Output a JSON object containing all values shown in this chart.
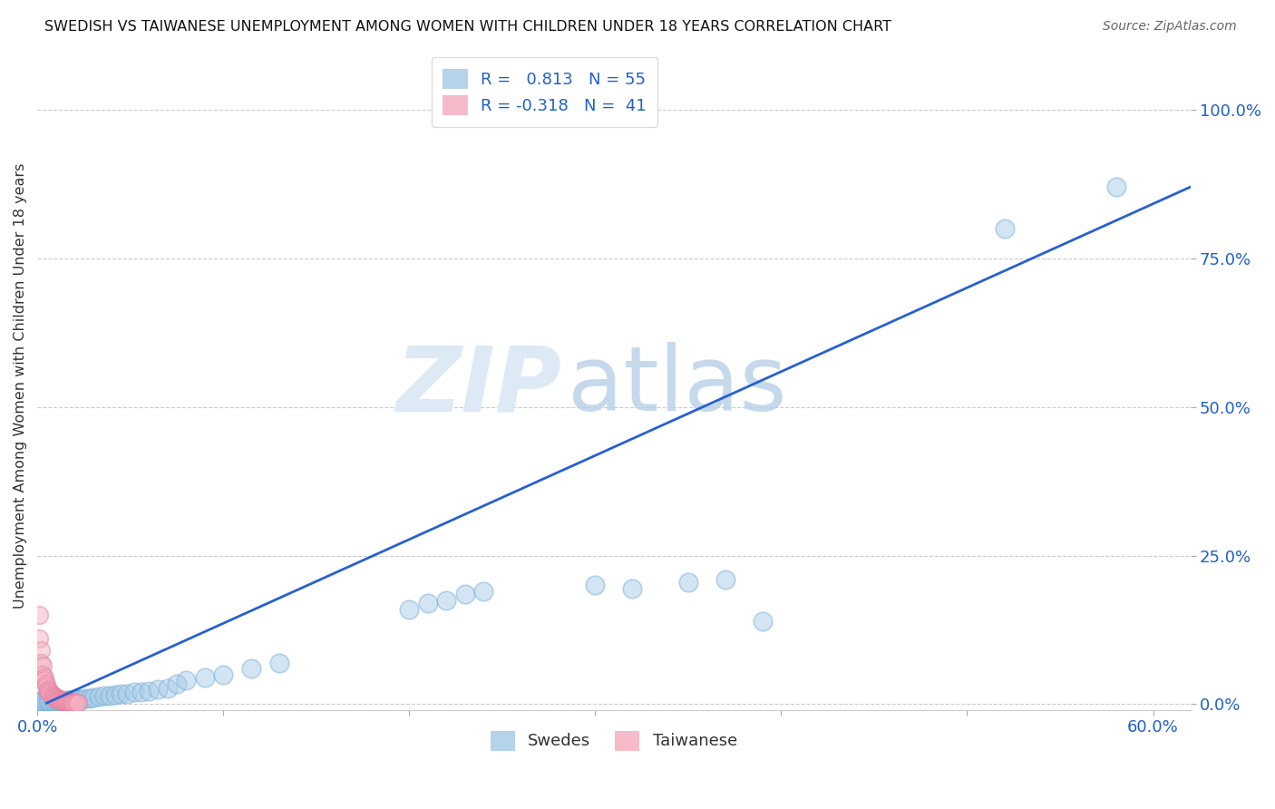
{
  "title": "SWEDISH VS TAIWANESE UNEMPLOYMENT AMONG WOMEN WITH CHILDREN UNDER 18 YEARS CORRELATION CHART",
  "source": "Source: ZipAtlas.com",
  "ylabel": "Unemployment Among Women with Children Under 18 years",
  "xlim": [
    0.0,
    0.62
  ],
  "ylim": [
    -0.01,
    1.08
  ],
  "xticks": [
    0.0,
    0.1,
    0.2,
    0.3,
    0.4,
    0.5,
    0.6
  ],
  "yticks_right": [
    0.0,
    0.25,
    0.5,
    0.75,
    1.0
  ],
  "yticklabels_right": [
    "0.0%",
    "25.0%",
    "50.0%",
    "75.0%",
    "100.0%"
  ],
  "R_swedes": 0.813,
  "N_swedes": 55,
  "R_taiwanese": -0.318,
  "N_taiwanese": 41,
  "blue_color": "#a8cce8",
  "pink_color": "#f4b0c0",
  "trend_color": "#2860d0",
  "legend_label_swedes": "Swedes",
  "legend_label_taiwanese": "Taiwanese",
  "swedes_x": [
    0.001,
    0.002,
    0.003,
    0.004,
    0.005,
    0.006,
    0.007,
    0.008,
    0.009,
    0.01,
    0.011,
    0.012,
    0.013,
    0.014,
    0.015,
    0.016,
    0.017,
    0.018,
    0.019,
    0.02,
    0.021,
    0.022,
    0.024,
    0.026,
    0.028,
    0.03,
    0.033,
    0.036,
    0.039,
    0.042,
    0.045,
    0.048,
    0.052,
    0.056,
    0.06,
    0.065,
    0.07,
    0.075,
    0.08,
    0.09,
    0.1,
    0.115,
    0.13,
    0.2,
    0.21,
    0.22,
    0.23,
    0.24,
    0.3,
    0.32,
    0.35,
    0.37,
    0.39,
    0.52,
    0.58
  ],
  "swedes_y": [
    0.005,
    0.005,
    0.005,
    0.005,
    0.005,
    0.005,
    0.005,
    0.005,
    0.005,
    0.005,
    0.005,
    0.006,
    0.006,
    0.006,
    0.006,
    0.007,
    0.007,
    0.007,
    0.007,
    0.008,
    0.008,
    0.008,
    0.009,
    0.01,
    0.01,
    0.012,
    0.013,
    0.014,
    0.015,
    0.016,
    0.017,
    0.018,
    0.02,
    0.021,
    0.022,
    0.025,
    0.027,
    0.035,
    0.04,
    0.045,
    0.05,
    0.06,
    0.07,
    0.16,
    0.17,
    0.175,
    0.185,
    0.19,
    0.2,
    0.195,
    0.205,
    0.21,
    0.14,
    0.8,
    0.87
  ],
  "taiwanese_x": [
    0.001,
    0.001,
    0.002,
    0.002,
    0.003,
    0.003,
    0.004,
    0.004,
    0.005,
    0.005,
    0.006,
    0.006,
    0.007,
    0.007,
    0.008,
    0.008,
    0.009,
    0.009,
    0.01,
    0.01,
    0.011,
    0.011,
    0.012,
    0.012,
    0.013,
    0.013,
    0.014,
    0.014,
    0.015,
    0.015,
    0.016,
    0.016,
    0.017,
    0.017,
    0.018,
    0.018,
    0.019,
    0.019,
    0.02,
    0.021,
    0.022
  ],
  "taiwanese_y": [
    0.15,
    0.11,
    0.09,
    0.07,
    0.065,
    0.05,
    0.045,
    0.04,
    0.035,
    0.03,
    0.025,
    0.022,
    0.02,
    0.018,
    0.016,
    0.014,
    0.013,
    0.012,
    0.011,
    0.01,
    0.009,
    0.008,
    0.008,
    0.007,
    0.007,
    0.006,
    0.006,
    0.005,
    0.005,
    0.005,
    0.005,
    0.004,
    0.004,
    0.004,
    0.004,
    0.003,
    0.003,
    0.003,
    0.003,
    0.003,
    0.002
  ],
  "trend_x": [
    0.005,
    0.62
  ],
  "trend_y": [
    0.002,
    0.87
  ],
  "background_color": "#ffffff",
  "grid_color": "#cccccc"
}
